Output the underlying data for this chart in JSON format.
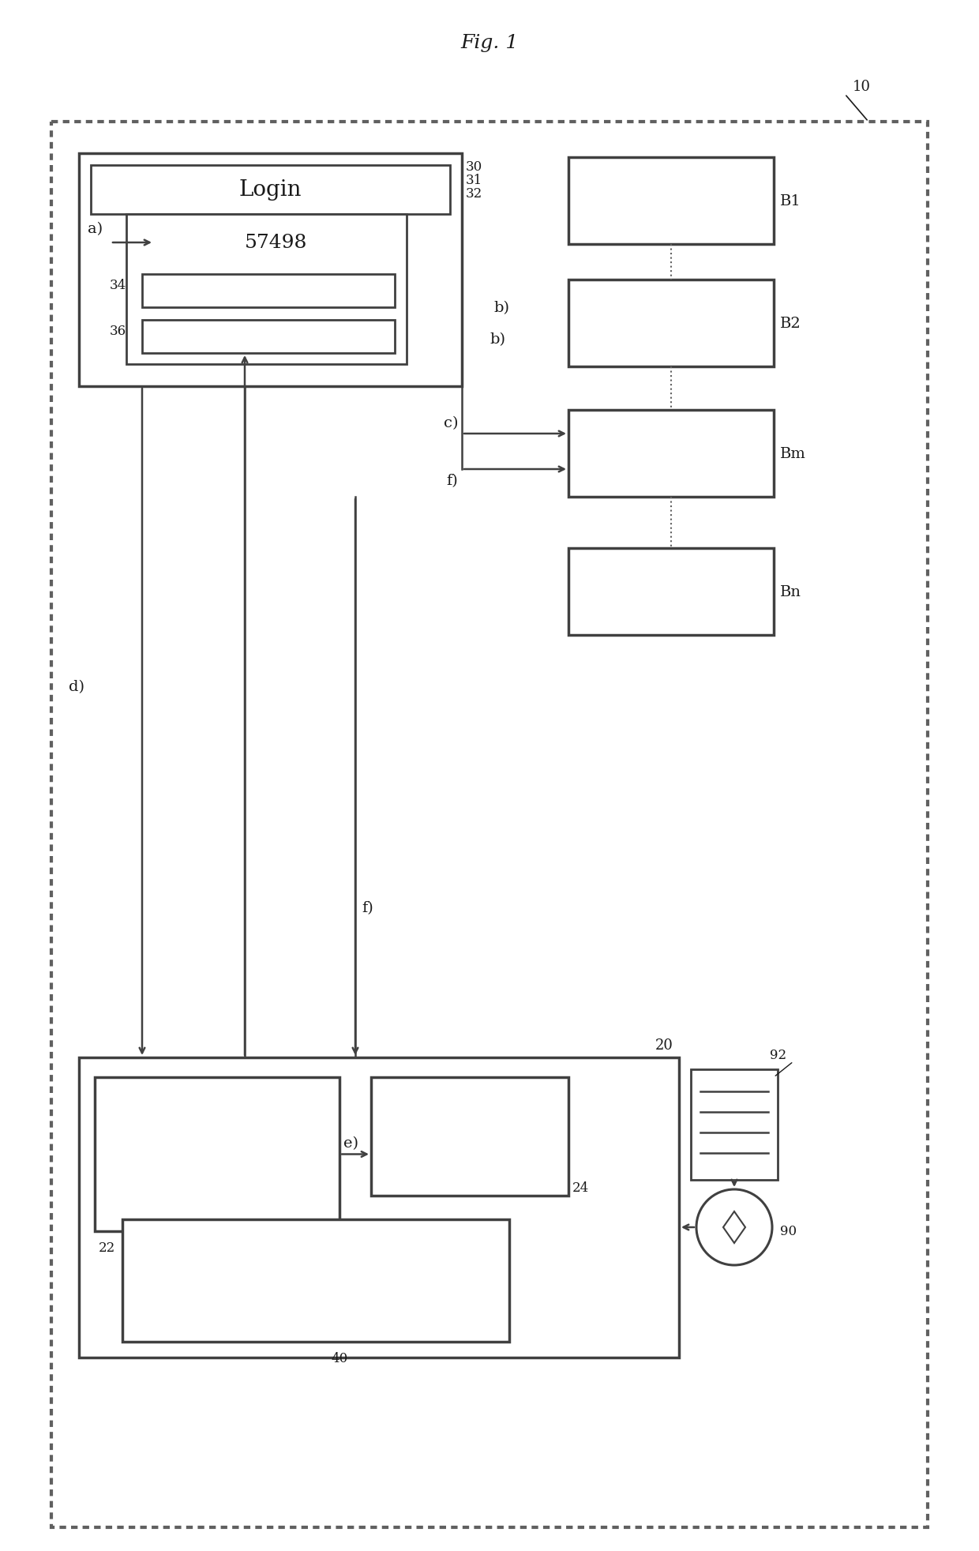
{
  "fig_title": "Fig. 1",
  "ref_10": "10",
  "ref_20": "20",
  "ref_22": "22",
  "ref_24": "24",
  "ref_30": "30",
  "ref_31": "31",
  "ref_32": "32",
  "ref_34": "34",
  "ref_36": "36",
  "ref_40": "40",
  "ref_90": "90",
  "ref_92": "92",
  "ref_B1": "B1",
  "ref_B2": "B2",
  "ref_Bm": "Bm",
  "ref_Bn": "Bn",
  "label_login": "Login",
  "label_57498": "57498",
  "label_a": "a)",
  "label_b": "b)",
  "label_c": "c)",
  "label_d": "d)",
  "label_e": "e)",
  "label_f1": "f)",
  "label_f2": "f)",
  "bg_color": "#ffffff",
  "box_edge_color": "#404040",
  "dashed_border_color": "#606060",
  "arrow_color": "#404040",
  "text_color": "#1a1a1a"
}
